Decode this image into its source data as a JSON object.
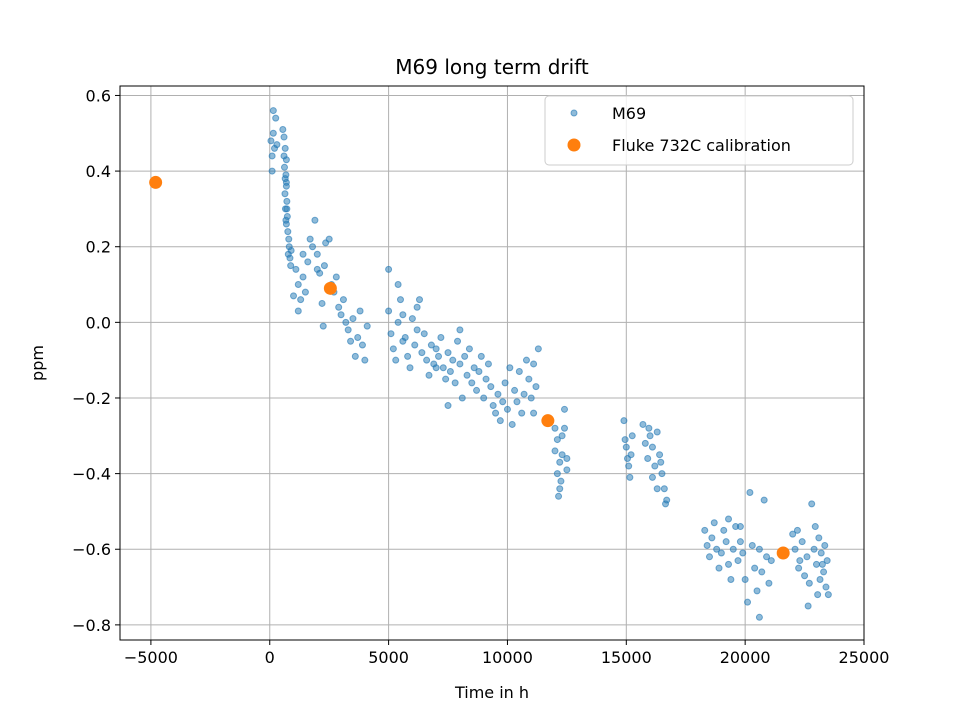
{
  "chart_data": {
    "type": "scatter",
    "title": "M69 long term drift",
    "xlabel": "Time in h",
    "ylabel": "ppm",
    "xlim": [
      -6300,
      25000
    ],
    "ylim": [
      -0.84,
      0.625
    ],
    "xticks": [
      -5000,
      0,
      5000,
      10000,
      15000,
      20000,
      25000
    ],
    "xtick_labels": [
      "−5000",
      "0",
      "5000",
      "10000",
      "15000",
      "20000",
      "25000"
    ],
    "yticks": [
      -0.8,
      -0.6,
      -0.4,
      -0.2,
      0.0,
      0.2,
      0.4,
      0.6
    ],
    "ytick_labels": [
      "−0.8",
      "−0.6",
      "−0.4",
      "−0.2",
      "0.0",
      "0.2",
      "0.4",
      "0.6"
    ],
    "grid": true,
    "legend_position": "upper right",
    "series": [
      {
        "name": "M69",
        "color": "#1f77b4",
        "marker": "small-dot",
        "points": [
          [
            50,
            0.48
          ],
          [
            100,
            0.44
          ],
          [
            150,
            0.5
          ],
          [
            200,
            0.46
          ],
          [
            150,
            0.56
          ],
          [
            250,
            0.54
          ],
          [
            100,
            0.4
          ],
          [
            300,
            0.47
          ],
          [
            550,
            0.51
          ],
          [
            600,
            0.49
          ],
          [
            650,
            0.46
          ],
          [
            700,
            0.43
          ],
          [
            620,
            0.41
          ],
          [
            680,
            0.39
          ],
          [
            700,
            0.36
          ],
          [
            640,
            0.34
          ],
          [
            720,
            0.32
          ],
          [
            660,
            0.3
          ],
          [
            740,
            0.28
          ],
          [
            700,
            0.26
          ],
          [
            760,
            0.24
          ],
          [
            800,
            0.22
          ],
          [
            820,
            0.2
          ],
          [
            780,
            0.18
          ],
          [
            850,
            0.17
          ],
          [
            900,
            0.19
          ],
          [
            880,
            0.15
          ],
          [
            700,
            0.37
          ],
          [
            600,
            0.44
          ],
          [
            650,
            0.38
          ],
          [
            720,
            0.3
          ],
          [
            680,
            0.27
          ],
          [
            1100,
            0.14
          ],
          [
            1200,
            0.1
          ],
          [
            1300,
            0.06
          ],
          [
            1400,
            0.12
          ],
          [
            1500,
            0.08
          ],
          [
            1600,
            0.16
          ],
          [
            1700,
            0.22
          ],
          [
            1800,
            0.2
          ],
          [
            1900,
            0.27
          ],
          [
            2000,
            0.18
          ],
          [
            2100,
            0.13
          ],
          [
            2200,
            0.05
          ],
          [
            2250,
            -0.01
          ],
          [
            2300,
            0.15
          ],
          [
            2350,
            0.21
          ],
          [
            2500,
            0.22
          ],
          [
            2600,
            0.1
          ],
          [
            2700,
            0.08
          ],
          [
            2800,
            0.12
          ],
          [
            2900,
            0.04
          ],
          [
            3000,
            0.02
          ],
          [
            3100,
            0.06
          ],
          [
            3200,
            0.0
          ],
          [
            3300,
            -0.02
          ],
          [
            3400,
            -0.05
          ],
          [
            3500,
            0.01
          ],
          [
            3600,
            -0.09
          ],
          [
            3700,
            -0.04
          ],
          [
            3800,
            0.03
          ],
          [
            3900,
            -0.06
          ],
          [
            4000,
            -0.1
          ],
          [
            4100,
            -0.01
          ],
          [
            1200,
            0.03
          ],
          [
            1000,
            0.07
          ],
          [
            1400,
            0.18
          ],
          [
            2000,
            0.14
          ],
          [
            5000,
            0.14
          ],
          [
            5000,
            0.03
          ],
          [
            5100,
            -0.03
          ],
          [
            5200,
            -0.07
          ],
          [
            5300,
            -0.1
          ],
          [
            5400,
            0.0
          ],
          [
            5500,
            0.06
          ],
          [
            5600,
            0.02
          ],
          [
            5700,
            -0.04
          ],
          [
            5800,
            -0.09
          ],
          [
            5900,
            -0.12
          ],
          [
            6000,
            0.01
          ],
          [
            6100,
            -0.06
          ],
          [
            6200,
            -0.02
          ],
          [
            6300,
            0.06
          ],
          [
            6400,
            -0.08
          ],
          [
            6500,
            -0.03
          ],
          [
            6600,
            -0.1
          ],
          [
            6700,
            -0.14
          ],
          [
            6800,
            -0.06
          ],
          [
            6900,
            -0.11
          ],
          [
            7000,
            -0.07
          ],
          [
            7100,
            -0.09
          ],
          [
            7200,
            -0.04
          ],
          [
            7300,
            -0.12
          ],
          [
            7400,
            -0.15
          ],
          [
            7500,
            -0.08
          ],
          [
            7600,
            -0.13
          ],
          [
            7700,
            -0.1
          ],
          [
            7800,
            -0.16
          ],
          [
            7900,
            -0.05
          ],
          [
            8000,
            -0.11
          ],
          [
            8100,
            -0.2
          ],
          [
            8200,
            -0.09
          ],
          [
            8300,
            -0.14
          ],
          [
            8400,
            -0.07
          ],
          [
            8500,
            -0.16
          ],
          [
            8600,
            -0.12
          ],
          [
            8700,
            -0.18
          ],
          [
            8800,
            -0.13
          ],
          [
            8900,
            -0.09
          ],
          [
            9000,
            -0.2
          ],
          [
            9100,
            -0.15
          ],
          [
            9200,
            -0.11
          ],
          [
            9300,
            -0.17
          ],
          [
            9400,
            -0.22
          ],
          [
            9500,
            -0.24
          ],
          [
            9600,
            -0.19
          ],
          [
            9700,
            -0.26
          ],
          [
            9800,
            -0.21
          ],
          [
            9900,
            -0.16
          ],
          [
            10000,
            -0.23
          ],
          [
            10100,
            -0.12
          ],
          [
            10200,
            -0.27
          ],
          [
            10300,
            -0.18
          ],
          [
            10400,
            -0.21
          ],
          [
            10500,
            -0.13
          ],
          [
            10600,
            -0.24
          ],
          [
            10700,
            -0.19
          ],
          [
            10800,
            -0.1
          ],
          [
            10900,
            -0.15
          ],
          [
            11000,
            -0.2
          ],
          [
            11100,
            -0.11
          ],
          [
            11200,
            -0.17
          ],
          [
            11300,
            -0.07
          ],
          [
            11100,
            -0.24
          ],
          [
            5400,
            0.1
          ],
          [
            5600,
            -0.05
          ],
          [
            6200,
            0.04
          ],
          [
            7500,
            -0.22
          ],
          [
            8000,
            -0.02
          ],
          [
            7000,
            -0.12
          ],
          [
            12000,
            -0.28
          ],
          [
            12000,
            -0.34
          ],
          [
            12100,
            -0.31
          ],
          [
            12100,
            -0.4
          ],
          [
            12200,
            -0.37
          ],
          [
            12200,
            -0.44
          ],
          [
            12300,
            -0.3
          ],
          [
            12300,
            -0.35
          ],
          [
            12400,
            -0.23
          ],
          [
            12400,
            -0.28
          ],
          [
            12500,
            -0.36
          ],
          [
            12500,
            -0.39
          ],
          [
            12150,
            -0.46
          ],
          [
            12250,
            -0.42
          ],
          [
            14900,
            -0.26
          ],
          [
            14950,
            -0.31
          ],
          [
            15000,
            -0.33
          ],
          [
            15050,
            -0.36
          ],
          [
            15100,
            -0.38
          ],
          [
            15150,
            -0.41
          ],
          [
            15200,
            -0.35
          ],
          [
            15250,
            -0.3
          ],
          [
            15700,
            -0.27
          ],
          [
            15800,
            -0.32
          ],
          [
            15900,
            -0.36
          ],
          [
            16000,
            -0.3
          ],
          [
            16100,
            -0.33
          ],
          [
            16200,
            -0.38
          ],
          [
            16300,
            -0.29
          ],
          [
            16400,
            -0.35
          ],
          [
            16500,
            -0.4
          ],
          [
            16600,
            -0.44
          ],
          [
            16700,
            -0.47
          ],
          [
            16650,
            -0.48
          ],
          [
            16300,
            -0.44
          ],
          [
            16100,
            -0.41
          ],
          [
            15950,
            -0.28
          ],
          [
            16450,
            -0.37
          ],
          [
            18300,
            -0.55
          ],
          [
            18400,
            -0.59
          ],
          [
            18500,
            -0.62
          ],
          [
            18600,
            -0.57
          ],
          [
            18700,
            -0.53
          ],
          [
            18800,
            -0.6
          ],
          [
            18900,
            -0.65
          ],
          [
            19000,
            -0.61
          ],
          [
            19100,
            -0.55
          ],
          [
            19200,
            -0.58
          ],
          [
            19300,
            -0.64
          ],
          [
            19400,
            -0.68
          ],
          [
            19500,
            -0.6
          ],
          [
            19600,
            -0.54
          ],
          [
            19700,
            -0.63
          ],
          [
            19800,
            -0.58
          ],
          [
            19900,
            -0.61
          ],
          [
            20000,
            -0.68
          ],
          [
            20100,
            -0.74
          ],
          [
            20200,
            -0.45
          ],
          [
            20300,
            -0.59
          ],
          [
            20400,
            -0.65
          ],
          [
            20500,
            -0.71
          ],
          [
            20600,
            -0.6
          ],
          [
            20700,
            -0.66
          ],
          [
            20800,
            -0.47
          ],
          [
            20900,
            -0.62
          ],
          [
            21000,
            -0.69
          ],
          [
            21100,
            -0.63
          ],
          [
            20600,
            -0.78
          ],
          [
            19300,
            -0.52
          ],
          [
            19800,
            -0.54
          ],
          [
            22000,
            -0.56
          ],
          [
            22100,
            -0.6
          ],
          [
            22200,
            -0.55
          ],
          [
            22300,
            -0.63
          ],
          [
            22400,
            -0.58
          ],
          [
            22500,
            -0.67
          ],
          [
            22600,
            -0.62
          ],
          [
            22700,
            -0.69
          ],
          [
            22800,
            -0.48
          ],
          [
            22900,
            -0.6
          ],
          [
            23000,
            -0.64
          ],
          [
            23100,
            -0.57
          ],
          [
            23200,
            -0.61
          ],
          [
            23300,
            -0.66
          ],
          [
            23400,
            -0.7
          ],
          [
            23500,
            -0.72
          ],
          [
            23450,
            -0.63
          ],
          [
            23350,
            -0.59
          ],
          [
            23150,
            -0.68
          ],
          [
            22650,
            -0.75
          ],
          [
            22250,
            -0.65
          ],
          [
            22950,
            -0.54
          ],
          [
            23050,
            -0.72
          ],
          [
            23250,
            -0.64
          ]
        ]
      },
      {
        "name": "Fluke 732C calibration",
        "color": "#ff7f0e",
        "marker": "large-dot",
        "points": [
          [
            -4800,
            0.37
          ],
          [
            2550,
            0.09
          ],
          [
            11700,
            -0.26
          ],
          [
            21600,
            -0.61
          ]
        ]
      }
    ]
  }
}
